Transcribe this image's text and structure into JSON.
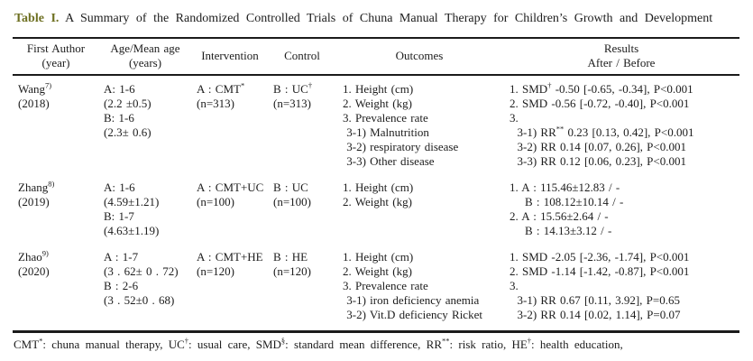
{
  "title": {
    "label": "Table I.",
    "text": "A Summary of the Randomized Controlled Trials of Chuna Manual Therapy for Children’s Growth and Development"
  },
  "table": {
    "columns": [
      "author",
      "age",
      "intervention",
      "control",
      "outcomes",
      "results"
    ],
    "headers": [
      [
        [
          "First Author"
        ],
        [
          "(year)"
        ]
      ],
      [
        [
          "Age/Mean age"
        ],
        [
          "(years)"
        ]
      ],
      [
        [
          "Intervention"
        ]
      ],
      [
        [
          "Control"
        ]
      ],
      [
        [
          "Outcomes"
        ]
      ],
      [
        [
          "Results"
        ],
        [
          "After / Before"
        ]
      ]
    ],
    "rows": [
      {
        "author": [
          [
            "Wang",
            {
              "s": "7)"
            }
          ],
          [
            "(2018)"
          ]
        ],
        "age": [
          [
            "A: 1-6"
          ],
          [
            "(2.2 ±0.5)"
          ],
          [
            "B: 1-6"
          ],
          [
            "(2.3± 0.6)"
          ]
        ],
        "intervention": [
          [
            "A : CMT",
            {
              "s": "*"
            }
          ],
          [
            "(n=313)"
          ]
        ],
        "control": [
          [
            "B : UC",
            {
              "s": "†"
            }
          ],
          [
            "(n=313)"
          ]
        ],
        "outcomes": [
          [
            "1. Height (cm)"
          ],
          [
            "2. Weight (kg)"
          ],
          [
            "3. Prevalence rate"
          ],
          [
            " 3-1) Malnutrition"
          ],
          [
            " 3-2) respiratory disease"
          ],
          [
            " 3-3) Other disease"
          ]
        ],
        "results": [
          [
            "1. SMD",
            {
              "s": "†"
            },
            " -0.50 [-0.65, -0.34], P<0.001"
          ],
          [
            "2. SMD -0.56 [-0.72, -0.40], P<0.001"
          ],
          [
            "3."
          ],
          [
            "  3-1) RR",
            {
              "s": "**"
            },
            " 0.23 [0.13, 0.42], P<0.001"
          ],
          [
            "  3-2) RR 0.14 [0.07, 0.26], P<0.001"
          ],
          [
            "  3-3) RR 0.12 [0.06, 0.23], P<0.001"
          ]
        ]
      },
      {
        "author": [
          [
            "Zhang",
            {
              "s": "8)"
            }
          ],
          [
            "(2019)"
          ]
        ],
        "age": [
          [
            "A: 1-6"
          ],
          [
            "(4.59±1.21)"
          ],
          [
            "B: 1-7"
          ],
          [
            "(4.63±1.19)"
          ]
        ],
        "intervention": [
          [
            "A : CMT+UC"
          ],
          [
            "(n=100)"
          ]
        ],
        "control": [
          [
            "B : UC"
          ],
          [
            "(n=100)"
          ]
        ],
        "outcomes": [
          [
            "1. Height (cm)"
          ],
          [
            "2. Weight (kg)"
          ]
        ],
        "results": [
          [
            "1. A : 115.46±12.83 / -"
          ],
          [
            "    B : 108.12±10.14 / -"
          ],
          [
            "2. A : 15.56±2.64 / -"
          ],
          [
            "    B : 14.13±3.12 / -"
          ]
        ]
      },
      {
        "author": [
          [
            "Zhao",
            {
              "s": "9)"
            }
          ],
          [
            "(2020)"
          ]
        ],
        "age": [
          [
            "A : 1-7"
          ],
          [
            "(3 . 62± 0 . 72)"
          ],
          [
            "B : 2-6"
          ],
          [
            "(3 . 52±0 . 68)"
          ]
        ],
        "intervention": [
          [
            "A : CMT+HE"
          ],
          [
            "(n=120)"
          ]
        ],
        "control": [
          [
            "B : HE"
          ],
          [
            "(n=120)"
          ]
        ],
        "outcomes": [
          [
            "1. Height (cm)"
          ],
          [
            "2. Weight (kg)"
          ],
          [
            "3. Prevalence rate"
          ],
          [
            " 3-1) iron deficiency anemia"
          ],
          [
            " 3-2) Vit.D deficiency Ricket"
          ]
        ],
        "results": [
          [
            "1. SMD -2.05 [-2.36, -1.74], P<0.001"
          ],
          [
            "2. SMD -1.14 [-1.42, -0.87], P<0.001"
          ],
          [
            "3."
          ],
          [
            "  3-1) RR 0.67 [0.11, 3.92], P=0.65"
          ],
          [
            "  3-2) RR 0.14 [0.02, 1.14], P=0.07"
          ]
        ]
      }
    ]
  },
  "footnote": [
    [
      "CMT",
      {
        "s": "*"
      },
      ": chuna manual therapy, UC",
      {
        "s": "†"
      },
      ": usual care, SMD",
      {
        "s": "§"
      },
      ": standard mean difference, RR",
      {
        "s": "**"
      },
      ": risk ratio, HE",
      {
        "s": "†"
      },
      ": health education,"
    ]
  ]
}
